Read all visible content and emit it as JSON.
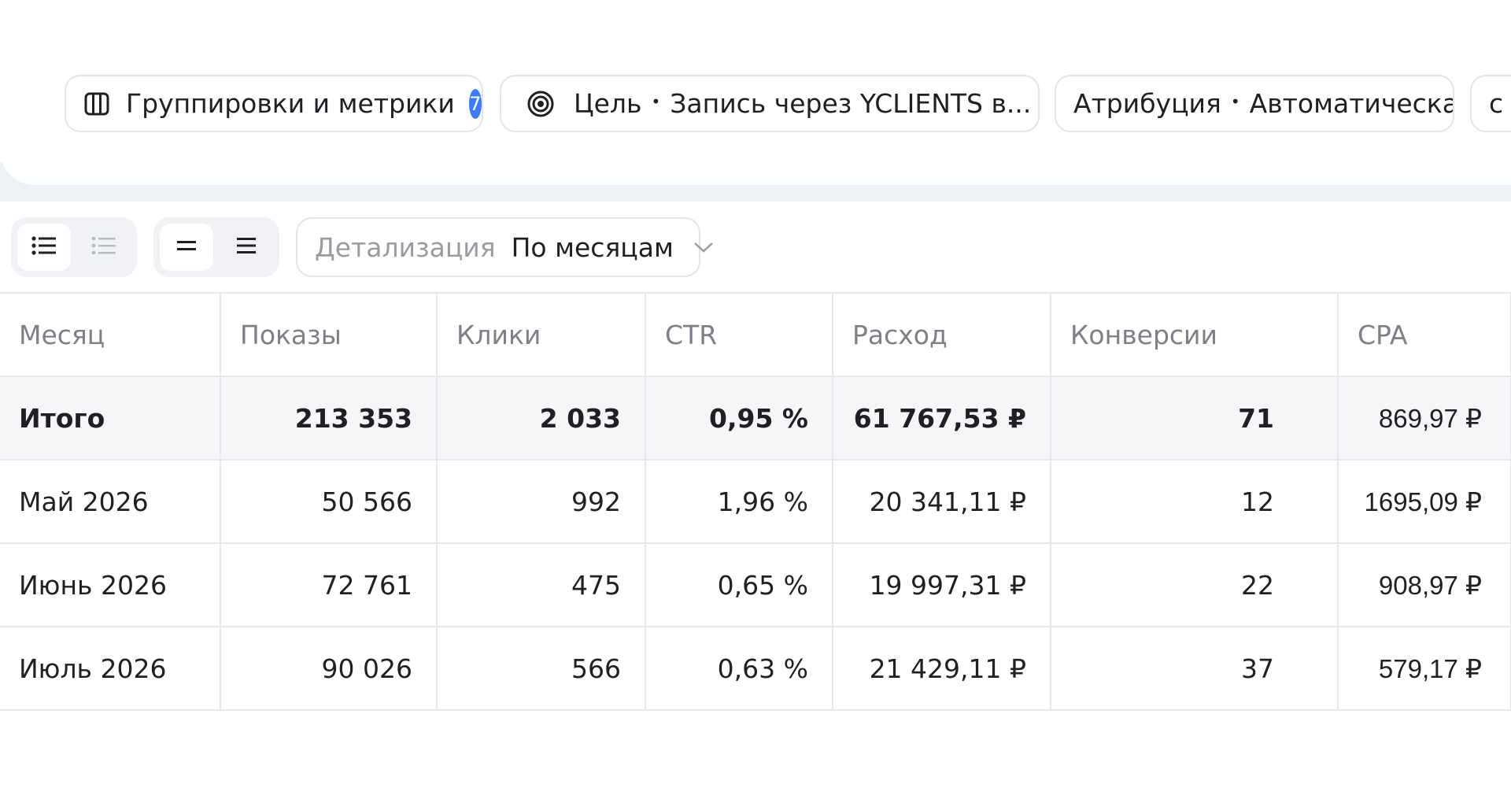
{
  "filters": {
    "groupings": {
      "label": "Группировки и метрики",
      "badge": "7",
      "icon": "columns-icon"
    },
    "goal": {
      "label": "Цель",
      "value": "Запись через YCLIENTS в...",
      "icon": "target-icon"
    },
    "attribution": {
      "label": "Атрибуция",
      "value": "Автоматическая"
    },
    "extra": {
      "label": "с К"
    }
  },
  "toolbar": {
    "view_list_icon": "list-icon",
    "view_list_alt_icon": "list-light-icon",
    "density_compact_icon": "density-compact-icon",
    "density_normal_icon": "density-normal-icon",
    "detail_label": "Детализация",
    "detail_value": "По месяцам"
  },
  "table": {
    "columns": [
      "Месяц",
      "Показы",
      "Клики",
      "CTR",
      "Расход",
      "Конверсии",
      "CPA"
    ],
    "total": {
      "month": "Итого",
      "impressions": "213 353",
      "clicks": "2 033",
      "ctr": "0,95 %",
      "spend": "61 767,53 ₽",
      "conversions": "71",
      "cpa": "869,97 ₽"
    },
    "rows": [
      {
        "month": "Май 2026",
        "impressions": "50 566",
        "clicks": "992",
        "ctr": "1,96 %",
        "spend": "20 341,11 ₽",
        "conversions": "12",
        "cpa": "1695,09 ₽"
      },
      {
        "month": "Июнь 2026",
        "impressions": "72 761",
        "clicks": "475",
        "ctr": "0,65 %",
        "spend": "19 997,31 ₽",
        "conversions": "22",
        "cpa": "908,97 ₽"
      },
      {
        "month": "Июль 2026",
        "impressions": "90 026",
        "clicks": "566",
        "ctr": "0,63 %",
        "spend": "21 429,11 ₽",
        "conversions": "37",
        "cpa": "579,17 ₽"
      }
    ]
  },
  "colors": {
    "accent": "#3d7bf7",
    "border": "#e2e4e8",
    "muted_text": "#7d8087",
    "total_row_bg": "#f5f6f8"
  }
}
